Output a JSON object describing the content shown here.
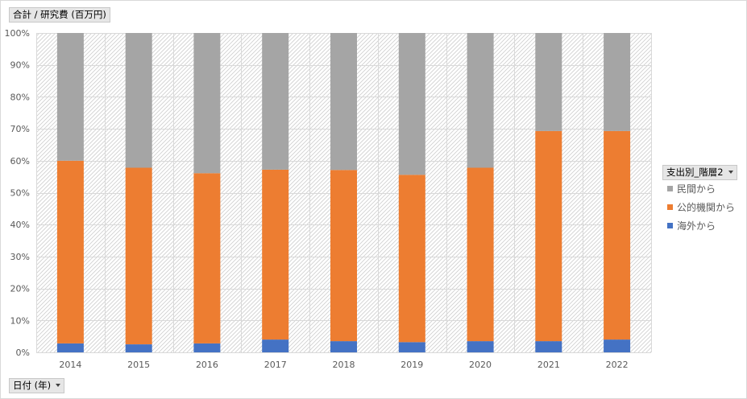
{
  "pivot": {
    "values_button_label": "合計 / 研究費 (百万円)",
    "axis_button_label": "日付 (年)",
    "legend_button_label": "支出別_階層2"
  },
  "chart_data": {
    "type": "bar",
    "stacked": true,
    "percent_stacked": true,
    "categories": [
      "2014",
      "2015",
      "2016",
      "2017",
      "2018",
      "2019",
      "2020",
      "2021",
      "2022"
    ],
    "series": [
      {
        "name": "海外から",
        "color": "#4472c4",
        "values": [
          2.8,
          2.5,
          2.8,
          4.0,
          3.5,
          3.2,
          3.5,
          3.5,
          4.0
        ]
      },
      {
        "name": "公的機関から",
        "color": "#ed7d31",
        "values": [
          57.2,
          55.3,
          53.3,
          53.2,
          53.6,
          52.4,
          54.3,
          65.8,
          65.3
        ]
      },
      {
        "name": "民間から",
        "color": "#a5a5a5",
        "values": [
          40.0,
          42.2,
          43.9,
          42.8,
          42.9,
          44.4,
          42.2,
          30.7,
          30.7
        ]
      }
    ],
    "y_ticks": [
      "0%",
      "10%",
      "20%",
      "30%",
      "40%",
      "50%",
      "60%",
      "70%",
      "80%",
      "90%",
      "100%"
    ],
    "ylim": [
      0,
      100
    ],
    "grid": true,
    "legend_position": "right",
    "legend_order": [
      "民間から",
      "公的機関から",
      "海外から"
    ]
  }
}
